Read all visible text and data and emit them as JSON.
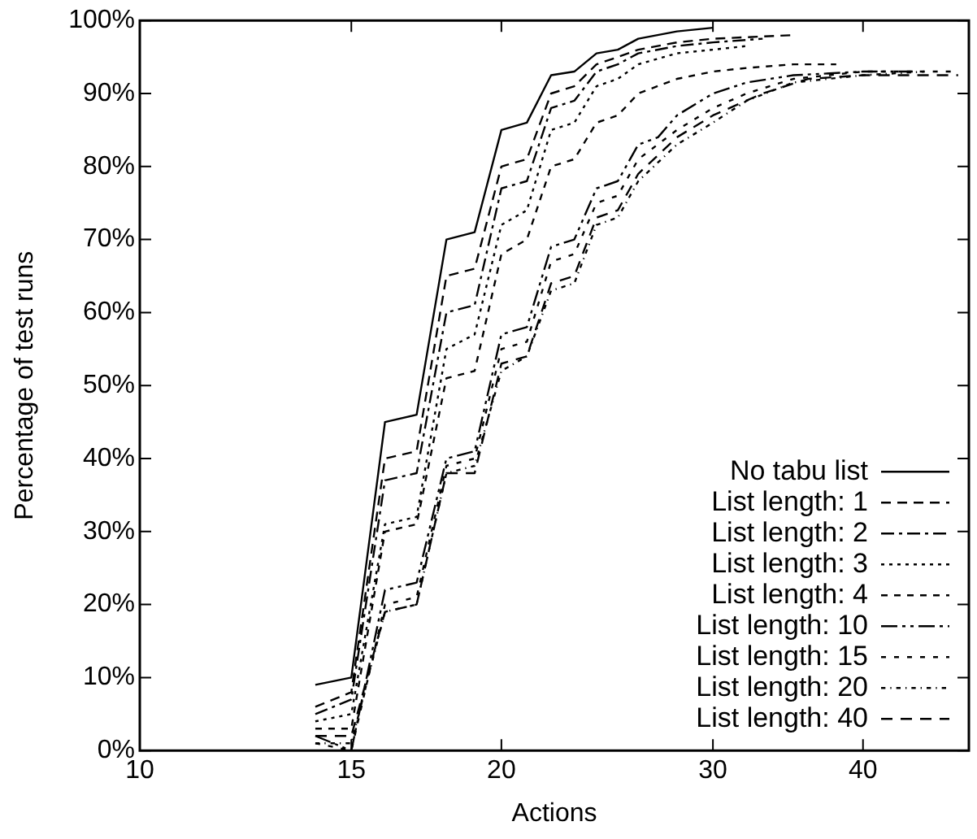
{
  "chart_data": {
    "type": "line",
    "xlabel": "Actions",
    "ylabel": "Percentage of test runs",
    "log": "x",
    "grid": false,
    "legend": "bottom right",
    "marker": "none",
    "xlim": [
      10,
      49
    ],
    "xticks": [
      10,
      15,
      20,
      30,
      40
    ],
    "ylim": [
      0,
      100
    ],
    "yticks": [
      {
        "value": 0,
        "label": "0%"
      },
      {
        "value": 10,
        "label": "10%"
      },
      {
        "value": 20,
        "label": "20%"
      },
      {
        "value": 30,
        "label": "30%"
      },
      {
        "value": 40,
        "label": "40%"
      },
      {
        "value": 50,
        "label": "50%"
      },
      {
        "value": 60,
        "label": "60%"
      },
      {
        "value": 70,
        "label": "70%"
      },
      {
        "value": 80,
        "label": "80%"
      },
      {
        "value": 90,
        "label": "90%"
      },
      {
        "value": 100,
        "label": "100%"
      }
    ],
    "series": [
      {
        "name": "No tabu list",
        "color": "#000000",
        "line_style": "solid",
        "x": [
          14,
          15,
          16,
          17,
          18,
          19,
          20,
          21,
          22,
          23,
          24,
          25,
          26,
          28,
          30
        ],
        "values": [
          9,
          10,
          45,
          46,
          70,
          71,
          85,
          86,
          92.5,
          93,
          95.5,
          96,
          97.5,
          98.5,
          99
        ]
      },
      {
        "name": "List length: 1",
        "color": "#000000",
        "line_style": "dashed",
        "x": [
          14,
          15,
          16,
          17,
          18,
          19,
          20,
          21,
          22,
          23,
          24,
          25,
          26,
          28,
          30,
          35
        ],
        "values": [
          6,
          8,
          40,
          41,
          65,
          66,
          80,
          81,
          90,
          91,
          94,
          95,
          96,
          97,
          97.5,
          98
        ]
      },
      {
        "name": "List length: 2",
        "color": "#000000",
        "line_style": "dashed",
        "x": [
          14,
          15,
          16,
          17,
          18,
          19,
          20,
          21,
          22,
          23,
          24,
          25,
          26,
          28,
          30,
          33
        ],
        "values": [
          5,
          7,
          37,
          38,
          60,
          61,
          77,
          78,
          88,
          89,
          93,
          94,
          95.5,
          96.5,
          97,
          97.5
        ]
      },
      {
        "name": "List length: 3",
        "color": "#000000",
        "line_style": "dotted",
        "x": [
          14,
          15,
          16,
          17,
          18,
          19,
          20,
          21,
          22,
          23,
          24,
          25,
          26,
          28,
          30,
          32
        ],
        "values": [
          4,
          5,
          31,
          32,
          55,
          57,
          72,
          74,
          85,
          86,
          91,
          92,
          94,
          95.5,
          96,
          96.5
        ]
      },
      {
        "name": "List length: 4",
        "color": "#000000",
        "line_style": "dashed",
        "x": [
          14,
          15,
          16,
          17,
          18,
          19,
          20,
          21,
          22,
          23,
          24,
          25,
          26,
          28,
          30,
          32,
          35,
          38
        ],
        "values": [
          3,
          3,
          30,
          31,
          51,
          52,
          68,
          70,
          80,
          81,
          86,
          87,
          90,
          92,
          93,
          93.5,
          94,
          94
        ]
      },
      {
        "name": "List length: 10",
        "color": "#000000",
        "line_style": "dashed",
        "x": [
          14,
          15,
          16,
          17,
          18,
          19,
          20,
          21,
          22,
          23,
          24,
          25,
          26,
          27,
          28,
          30,
          32,
          35,
          40,
          44
        ],
        "values": [
          2,
          0,
          22,
          23,
          40,
          41,
          57,
          58,
          69,
          70,
          77,
          78,
          83,
          84,
          87,
          90,
          91.5,
          92.5,
          93,
          93
        ]
      },
      {
        "name": "List length: 15",
        "color": "#000000",
        "line_style": "dashed",
        "x": [
          14,
          15,
          16,
          17,
          18,
          19,
          20,
          21,
          22,
          23,
          24,
          25,
          26,
          28,
          30,
          32,
          35,
          40,
          48
        ],
        "values": [
          1,
          0,
          20,
          21,
          39,
          40,
          55,
          56,
          67,
          68,
          75,
          76,
          81,
          85,
          88,
          90,
          92,
          93,
          93
        ]
      },
      {
        "name": "List length: 20",
        "color": "#000000",
        "line_style": "dotted",
        "x": [
          14,
          15,
          16,
          17,
          18,
          19,
          20,
          21,
          22,
          23,
          24,
          25,
          26,
          28,
          30,
          32,
          35,
          40,
          45
        ],
        "values": [
          1,
          1,
          19,
          20,
          38,
          39,
          52,
          54,
          63,
          64,
          72,
          73,
          78,
          83,
          86,
          89,
          91.5,
          92.5,
          93
        ]
      },
      {
        "name": "List length: 40",
        "color": "#000000",
        "line_style": "dashed",
        "x": [
          14,
          15,
          16,
          17,
          18,
          19,
          20,
          21,
          22,
          23,
          24,
          25,
          26,
          28,
          30,
          33,
          36,
          40,
          48
        ],
        "values": [
          2,
          2,
          19,
          20,
          38,
          38,
          53,
          54,
          64,
          65,
          73,
          74,
          79,
          84,
          87,
          90,
          92,
          92.5,
          92.5
        ]
      }
    ]
  }
}
